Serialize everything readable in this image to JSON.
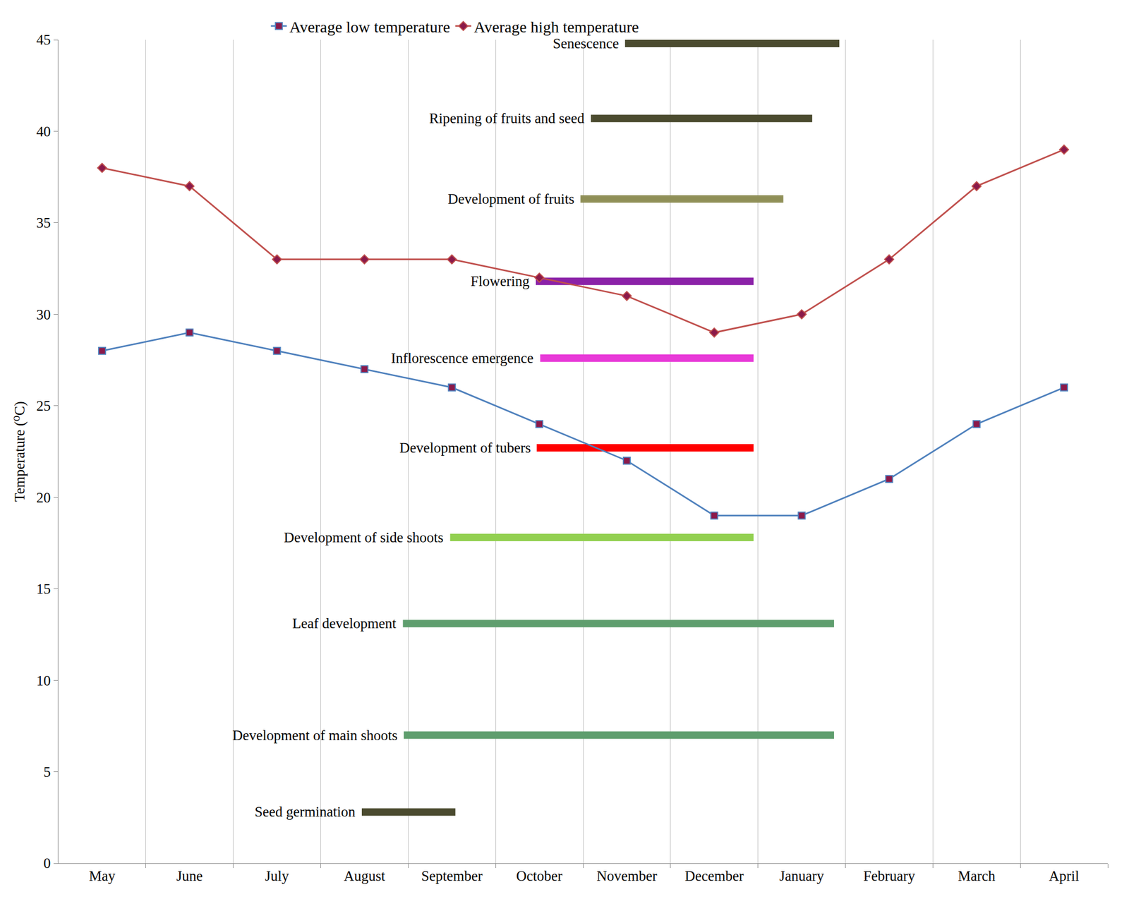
{
  "chart_data": {
    "type": "line",
    "categories": [
      "May",
      "June",
      "July",
      "August",
      "September",
      "October",
      "November",
      "December",
      "January",
      "February",
      "March",
      "April"
    ],
    "series": [
      {
        "name": "Average low temperature",
        "color": "#4f81bd",
        "marker": "square",
        "values": [
          28,
          29,
          28,
          27,
          26,
          24,
          22,
          19,
          19,
          21,
          24,
          26
        ]
      },
      {
        "name": "Average high temperature",
        "color": "#c0504d",
        "marker": "diamond",
        "values": [
          38,
          37,
          33,
          33,
          33,
          32,
          31,
          29,
          30,
          33,
          37,
          39
        ]
      }
    ],
    "y_label": "Temperature (⁰C)",
    "ylim": [
      0,
      45
    ],
    "yticks": [
      0,
      5,
      10,
      15,
      20,
      25,
      30,
      35,
      40,
      45
    ],
    "grid": true,
    "legend": "top",
    "stages": [
      {
        "name": "Senescence",
        "start": 5.98,
        "end": 8.43,
        "y": 44.8,
        "color": "#4b4b2f"
      },
      {
        "name": "Ripening of fruits and seed",
        "start": 5.59,
        "end": 8.12,
        "y": 40.7,
        "color": "#4b4b2f"
      },
      {
        "name": "Development of fruits",
        "start": 5.47,
        "end": 7.79,
        "y": 36.3,
        "color": "#8f8f57"
      },
      {
        "name": "Flowering",
        "start": 4.96,
        "end": 7.45,
        "y": 31.8,
        "color": "#8b22a8"
      },
      {
        "name": "Inflorescence emergence",
        "start": 5.01,
        "end": 7.45,
        "y": 27.6,
        "color": "#e83ad8"
      },
      {
        "name": "Development of tubers",
        "start": 4.97,
        "end": 7.45,
        "y": 22.7,
        "color": "#ff0000"
      },
      {
        "name": "Development of side shoots",
        "start": 3.98,
        "end": 7.45,
        "y": 17.8,
        "color": "#92d050"
      },
      {
        "name": "Leaf development",
        "start": 3.44,
        "end": 8.37,
        "y": 13.1,
        "color": "#5f9e6e"
      },
      {
        "name": "Development of main shoots",
        "start": 3.45,
        "end": 8.37,
        "y": 7.0,
        "color": "#5f9e6e"
      },
      {
        "name": "Seed germination",
        "start": 2.97,
        "end": 4.04,
        "y": 2.8,
        "color": "#4b4b2f"
      }
    ]
  }
}
